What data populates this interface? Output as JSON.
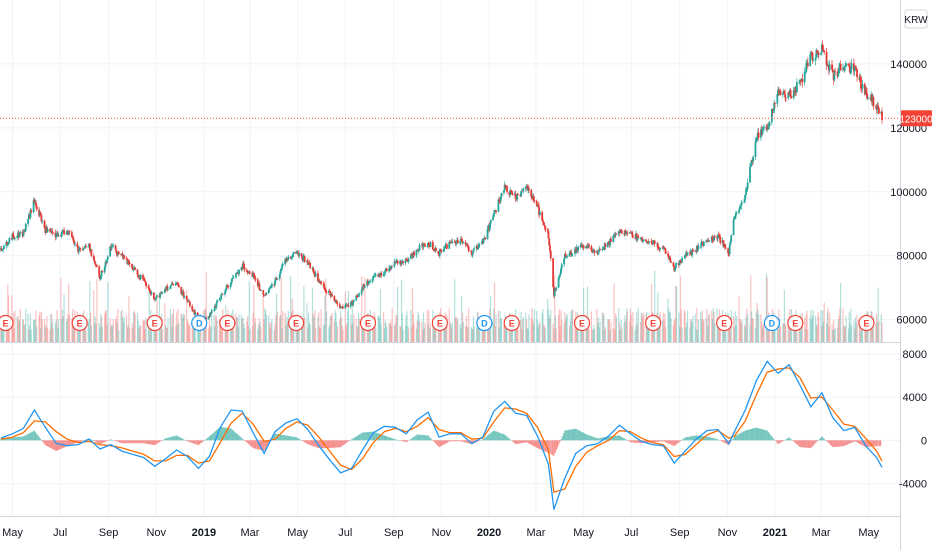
{
  "chart_data": {
    "type": "line",
    "symbol_currency": "KRW",
    "last_price": {
      "value": 123000,
      "label": "123000"
    },
    "price_axis": {
      "range": [
        53000,
        160000
      ],
      "ticks": [
        {
          "value": 140000,
          "label": "140000"
        },
        {
          "value": 120000,
          "label": "120000"
        },
        {
          "value": 100000,
          "label": "100000"
        },
        {
          "value": 80000,
          "label": "80000"
        },
        {
          "value": 60000,
          "label": "60000"
        }
      ]
    },
    "macd_axis": {
      "range": [
        -7000,
        9000
      ],
      "ticks": [
        {
          "value": 8000,
          "label": "8000"
        },
        {
          "value": 4000,
          "label": "4000"
        },
        {
          "value": 0,
          "label": "0"
        },
        {
          "value": -4000,
          "label": "-4000"
        }
      ]
    },
    "time_axis": {
      "range": [
        "2018-04-15",
        "2021-06-10"
      ],
      "ticks": [
        {
          "date": "2018-05-01",
          "label": "May",
          "bold": false
        },
        {
          "date": "2018-07-01",
          "label": "Jul",
          "bold": false
        },
        {
          "date": "2018-09-01",
          "label": "Sep",
          "bold": false
        },
        {
          "date": "2018-11-01",
          "label": "Nov",
          "bold": false
        },
        {
          "date": "2019-01-01",
          "label": "2019",
          "bold": true
        },
        {
          "date": "2019-03-01",
          "label": "Mar",
          "bold": false
        },
        {
          "date": "2019-05-01",
          "label": "May",
          "bold": false
        },
        {
          "date": "2019-07-01",
          "label": "Jul",
          "bold": false
        },
        {
          "date": "2019-09-01",
          "label": "Sep",
          "bold": false
        },
        {
          "date": "2019-11-01",
          "label": "Nov",
          "bold": false
        },
        {
          "date": "2020-01-01",
          "label": "2020",
          "bold": true
        },
        {
          "date": "2020-03-01",
          "label": "Mar",
          "bold": false
        },
        {
          "date": "2020-05-01",
          "label": "May",
          "bold": false
        },
        {
          "date": "2020-07-01",
          "label": "Jul",
          "bold": false
        },
        {
          "date": "2020-09-01",
          "label": "Sep",
          "bold": false
        },
        {
          "date": "2020-11-01",
          "label": "Nov",
          "bold": false
        },
        {
          "date": "2021-01-01",
          "label": "2021",
          "bold": true
        },
        {
          "date": "2021-03-01",
          "label": "Mar",
          "bold": false
        },
        {
          "date": "2021-05-01",
          "label": "May",
          "bold": false
        }
      ]
    },
    "price_series": [
      [
        "2018-04-16",
        82000
      ],
      [
        "2018-05-01",
        86000
      ],
      [
        "2018-05-15",
        87000
      ],
      [
        "2018-05-29",
        97000
      ],
      [
        "2018-06-12",
        88000
      ],
      [
        "2018-06-26",
        86000
      ],
      [
        "2018-07-10",
        88000
      ],
      [
        "2018-07-24",
        82000
      ],
      [
        "2018-08-07",
        83000
      ],
      [
        "2018-08-21",
        73000
      ],
      [
        "2018-09-04",
        83000
      ],
      [
        "2018-09-18",
        80000
      ],
      [
        "2018-10-02",
        76000
      ],
      [
        "2018-10-16",
        72000
      ],
      [
        "2018-10-30",
        66000
      ],
      [
        "2018-11-13",
        70000
      ],
      [
        "2018-11-27",
        71000
      ],
      [
        "2018-12-11",
        66000
      ],
      [
        "2018-12-25",
        60000
      ],
      [
        "2019-01-08",
        61000
      ],
      [
        "2019-01-22",
        67000
      ],
      [
        "2019-02-05",
        72000
      ],
      [
        "2019-02-19",
        77000
      ],
      [
        "2019-03-05",
        74000
      ],
      [
        "2019-03-19",
        67000
      ],
      [
        "2019-04-02",
        72000
      ],
      [
        "2019-04-16",
        79000
      ],
      [
        "2019-04-30",
        81000
      ],
      [
        "2019-05-14",
        78000
      ],
      [
        "2019-05-28",
        72000
      ],
      [
        "2019-06-11",
        68000
      ],
      [
        "2019-06-25",
        64000
      ],
      [
        "2019-07-09",
        65000
      ],
      [
        "2019-07-23",
        70000
      ],
      [
        "2019-08-06",
        73000
      ],
      [
        "2019-08-20",
        75000
      ],
      [
        "2019-09-03",
        78000
      ],
      [
        "2019-09-17",
        78000
      ],
      [
        "2019-10-01",
        82000
      ],
      [
        "2019-10-15",
        84000
      ],
      [
        "2019-10-29",
        81000
      ],
      [
        "2019-11-12",
        84000
      ],
      [
        "2019-11-26",
        85000
      ],
      [
        "2019-12-10",
        81000
      ],
      [
        "2019-12-24",
        84000
      ],
      [
        "2020-01-07",
        93000
      ],
      [
        "2020-01-21",
        101000
      ],
      [
        "2020-02-04",
        98000
      ],
      [
        "2020-02-18",
        102000
      ],
      [
        "2020-03-03",
        95000
      ],
      [
        "2020-03-17",
        86000
      ],
      [
        "2020-03-24",
        68000
      ],
      [
        "2020-04-07",
        80000
      ],
      [
        "2020-04-21",
        82000
      ],
      [
        "2020-05-05",
        83000
      ],
      [
        "2020-05-19",
        81000
      ],
      [
        "2020-06-02",
        84000
      ],
      [
        "2020-06-16",
        88000
      ],
      [
        "2020-06-30",
        87000
      ],
      [
        "2020-07-14",
        85000
      ],
      [
        "2020-07-28",
        84000
      ],
      [
        "2020-08-11",
        82000
      ],
      [
        "2020-08-25",
        76000
      ],
      [
        "2020-09-08",
        80000
      ],
      [
        "2020-09-22",
        82000
      ],
      [
        "2020-10-06",
        85000
      ],
      [
        "2020-10-20",
        86000
      ],
      [
        "2020-11-03",
        81000
      ],
      [
        "2020-11-10",
        92000
      ],
      [
        "2020-11-24",
        99000
      ],
      [
        "2020-12-08",
        117000
      ],
      [
        "2020-12-22",
        120000
      ],
      [
        "2021-01-05",
        131000
      ],
      [
        "2021-01-19",
        130000
      ],
      [
        "2021-02-02",
        134000
      ],
      [
        "2021-02-16",
        142000
      ],
      [
        "2021-03-02",
        145000
      ],
      [
        "2021-03-16",
        136000
      ],
      [
        "2021-03-30",
        140000
      ],
      [
        "2021-04-13",
        138000
      ],
      [
        "2021-04-27",
        131000
      ],
      [
        "2021-05-11",
        127000
      ],
      [
        "2021-05-18",
        123000
      ]
    ],
    "volume_scale_note": "relative",
    "macd_series": [
      [
        "2018-04-16",
        200
      ],
      [
        "2018-05-01",
        600
      ],
      [
        "2018-05-15",
        1100
      ],
      [
        "2018-05-29",
        2800
      ],
      [
        "2018-06-12",
        1200
      ],
      [
        "2018-06-26",
        -300
      ],
      [
        "2018-07-10",
        -500
      ],
      [
        "2018-07-24",
        -400
      ],
      [
        "2018-08-07",
        100
      ],
      [
        "2018-08-21",
        -800
      ],
      [
        "2018-09-04",
        -400
      ],
      [
        "2018-09-18",
        -1000
      ],
      [
        "2018-10-02",
        -1300
      ],
      [
        "2018-10-16",
        -1600
      ],
      [
        "2018-10-30",
        -2400
      ],
      [
        "2018-11-13",
        -1700
      ],
      [
        "2018-11-27",
        -900
      ],
      [
        "2018-12-11",
        -1500
      ],
      [
        "2018-12-25",
        -2600
      ],
      [
        "2019-01-08",
        -1500
      ],
      [
        "2019-01-22",
        1200
      ],
      [
        "2019-02-05",
        2800
      ],
      [
        "2019-02-19",
        2700
      ],
      [
        "2019-03-05",
        700
      ],
      [
        "2019-03-19",
        -1200
      ],
      [
        "2019-04-02",
        800
      ],
      [
        "2019-04-16",
        1600
      ],
      [
        "2019-04-30",
        2000
      ],
      [
        "2019-05-14",
        1000
      ],
      [
        "2019-05-28",
        -500
      ],
      [
        "2019-06-11",
        -1800
      ],
      [
        "2019-06-25",
        -3000
      ],
      [
        "2019-07-09",
        -2600
      ],
      [
        "2019-07-23",
        -900
      ],
      [
        "2019-08-06",
        700
      ],
      [
        "2019-08-20",
        1300
      ],
      [
        "2019-09-03",
        1200
      ],
      [
        "2019-09-17",
        600
      ],
      [
        "2019-10-01",
        1900
      ],
      [
        "2019-10-15",
        2600
      ],
      [
        "2019-10-29",
        300
      ],
      [
        "2019-11-12",
        600
      ],
      [
        "2019-11-26",
        600
      ],
      [
        "2019-12-10",
        -300
      ],
      [
        "2019-12-24",
        300
      ],
      [
        "2020-01-07",
        2700
      ],
      [
        "2020-01-21",
        3600
      ],
      [
        "2020-02-04",
        2500
      ],
      [
        "2020-02-18",
        2300
      ],
      [
        "2020-03-03",
        400
      ],
      [
        "2020-03-17",
        -2200
      ],
      [
        "2020-03-24",
        -6400
      ],
      [
        "2020-04-07",
        -3500
      ],
      [
        "2020-04-21",
        -1200
      ],
      [
        "2020-05-05",
        -500
      ],
      [
        "2020-05-19",
        -300
      ],
      [
        "2020-06-02",
        400
      ],
      [
        "2020-06-16",
        1400
      ],
      [
        "2020-06-30",
        600
      ],
      [
        "2020-07-14",
        -100
      ],
      [
        "2020-07-28",
        -400
      ],
      [
        "2020-08-11",
        -500
      ],
      [
        "2020-08-25",
        -2100
      ],
      [
        "2020-09-08",
        -1000
      ],
      [
        "2020-09-22",
        100
      ],
      [
        "2020-10-06",
        900
      ],
      [
        "2020-10-20",
        1000
      ],
      [
        "2020-11-03",
        -300
      ],
      [
        "2020-11-10",
        800
      ],
      [
        "2020-11-24",
        2800
      ],
      [
        "2020-12-08",
        5500
      ],
      [
        "2020-12-22",
        7300
      ],
      [
        "2021-01-05",
        6200
      ],
      [
        "2021-01-19",
        7000
      ],
      [
        "2021-02-02",
        5100
      ],
      [
        "2021-02-16",
        3100
      ],
      [
        "2021-03-02",
        4400
      ],
      [
        "2021-03-16",
        2100
      ],
      [
        "2021-03-30",
        900
      ],
      [
        "2021-04-13",
        1200
      ],
      [
        "2021-04-27",
        -500
      ],
      [
        "2021-05-11",
        -1600
      ],
      [
        "2021-05-18",
        -2500
      ]
    ],
    "signal_series": [
      [
        "2018-04-16",
        100
      ],
      [
        "2018-05-01",
        300
      ],
      [
        "2018-05-15",
        700
      ],
      [
        "2018-05-29",
        1800
      ],
      [
        "2018-06-12",
        1700
      ],
      [
        "2018-06-26",
        800
      ],
      [
        "2018-07-10",
        100
      ],
      [
        "2018-07-24",
        -200
      ],
      [
        "2018-08-07",
        -100
      ],
      [
        "2018-08-21",
        -400
      ],
      [
        "2018-09-04",
        -500
      ],
      [
        "2018-09-18",
        -700
      ],
      [
        "2018-10-02",
        -1000
      ],
      [
        "2018-10-16",
        -1300
      ],
      [
        "2018-10-30",
        -1900
      ],
      [
        "2018-11-13",
        -1900
      ],
      [
        "2018-11-27",
        -1400
      ],
      [
        "2018-12-11",
        -1400
      ],
      [
        "2018-12-25",
        -2100
      ],
      [
        "2019-01-08",
        -1900
      ],
      [
        "2019-01-22",
        -200
      ],
      [
        "2019-02-05",
        1600
      ],
      [
        "2019-02-19",
        2500
      ],
      [
        "2019-03-05",
        1500
      ],
      [
        "2019-03-19",
        -100
      ],
      [
        "2019-04-02",
        100
      ],
      [
        "2019-04-16",
        1100
      ],
      [
        "2019-04-30",
        1700
      ],
      [
        "2019-05-14",
        1400
      ],
      [
        "2019-05-28",
        300
      ],
      [
        "2019-06-11",
        -1000
      ],
      [
        "2019-06-25",
        -2300
      ],
      [
        "2019-07-09",
        -2700
      ],
      [
        "2019-07-23",
        -1700
      ],
      [
        "2019-08-06",
        -200
      ],
      [
        "2019-08-20",
        800
      ],
      [
        "2019-09-03",
        1100
      ],
      [
        "2019-09-17",
        800
      ],
      [
        "2019-10-01",
        1300
      ],
      [
        "2019-10-15",
        2100
      ],
      [
        "2019-10-29",
        1000
      ],
      [
        "2019-11-12",
        700
      ],
      [
        "2019-11-26",
        700
      ],
      [
        "2019-12-10",
        100
      ],
      [
        "2019-12-24",
        200
      ],
      [
        "2020-01-07",
        1700
      ],
      [
        "2020-01-21",
        3000
      ],
      [
        "2020-02-04",
        2900
      ],
      [
        "2020-02-18",
        2500
      ],
      [
        "2020-03-03",
        1200
      ],
      [
        "2020-03-17",
        -900
      ],
      [
        "2020-03-24",
        -4800
      ],
      [
        "2020-04-07",
        -4500
      ],
      [
        "2020-04-21",
        -2400
      ],
      [
        "2020-05-05",
        -1100
      ],
      [
        "2020-05-19",
        -500
      ],
      [
        "2020-06-02",
        0
      ],
      [
        "2020-06-16",
        900
      ],
      [
        "2020-06-30",
        800
      ],
      [
        "2020-07-14",
        200
      ],
      [
        "2020-07-28",
        -200
      ],
      [
        "2020-08-11",
        -400
      ],
      [
        "2020-08-25",
        -1500
      ],
      [
        "2020-09-08",
        -1300
      ],
      [
        "2020-09-22",
        -400
      ],
      [
        "2020-10-06",
        500
      ],
      [
        "2020-10-20",
        900
      ],
      [
        "2020-11-03",
        200
      ],
      [
        "2020-11-10",
        400
      ],
      [
        "2020-11-24",
        1800
      ],
      [
        "2020-12-08",
        4200
      ],
      [
        "2020-12-22",
        6300
      ],
      [
        "2021-01-05",
        6600
      ],
      [
        "2021-01-19",
        6700
      ],
      [
        "2021-02-02",
        5800
      ],
      [
        "2021-02-16",
        3900
      ],
      [
        "2021-03-02",
        4000
      ],
      [
        "2021-03-16",
        2800
      ],
      [
        "2021-03-30",
        1500
      ],
      [
        "2021-04-13",
        1300
      ],
      [
        "2021-04-27",
        200
      ],
      [
        "2021-05-11",
        -1000
      ],
      [
        "2021-05-18",
        -1900
      ]
    ],
    "events": [
      {
        "date": "2018-04-22",
        "label": "E",
        "kind": "earnings"
      },
      {
        "date": "2018-07-26",
        "label": "E",
        "kind": "earnings"
      },
      {
        "date": "2018-10-30",
        "label": "E",
        "kind": "earnings"
      },
      {
        "date": "2018-12-26",
        "label": "D",
        "kind": "dividend"
      },
      {
        "date": "2019-01-31",
        "label": "E",
        "kind": "earnings"
      },
      {
        "date": "2019-04-29",
        "label": "E",
        "kind": "earnings"
      },
      {
        "date": "2019-07-30",
        "label": "E",
        "kind": "earnings"
      },
      {
        "date": "2019-10-30",
        "label": "E",
        "kind": "earnings"
      },
      {
        "date": "2019-12-26",
        "label": "D",
        "kind": "dividend"
      },
      {
        "date": "2020-01-30",
        "label": "E",
        "kind": "earnings"
      },
      {
        "date": "2020-04-29",
        "label": "E",
        "kind": "earnings"
      },
      {
        "date": "2020-07-29",
        "label": "E",
        "kind": "earnings"
      },
      {
        "date": "2020-10-28",
        "label": "E",
        "kind": "earnings"
      },
      {
        "date": "2020-12-28",
        "label": "D",
        "kind": "dividend"
      },
      {
        "date": "2021-01-27",
        "label": "E",
        "kind": "earnings"
      },
      {
        "date": "2021-04-28",
        "label": "E",
        "kind": "earnings"
      }
    ],
    "colors": {
      "up": "#26a69a",
      "down": "#ef5350",
      "candle_down": "#e53935",
      "macd_line": "#2196f3",
      "signal_line": "#ff6d00",
      "hist_up": "#26a69a",
      "hist_down": "#ef5350",
      "last_price": "#f44336",
      "dividend": "#2196f3",
      "earnings": "#f44336",
      "grid": "#f0f3fa",
      "axis_text": "#131722"
    }
  }
}
